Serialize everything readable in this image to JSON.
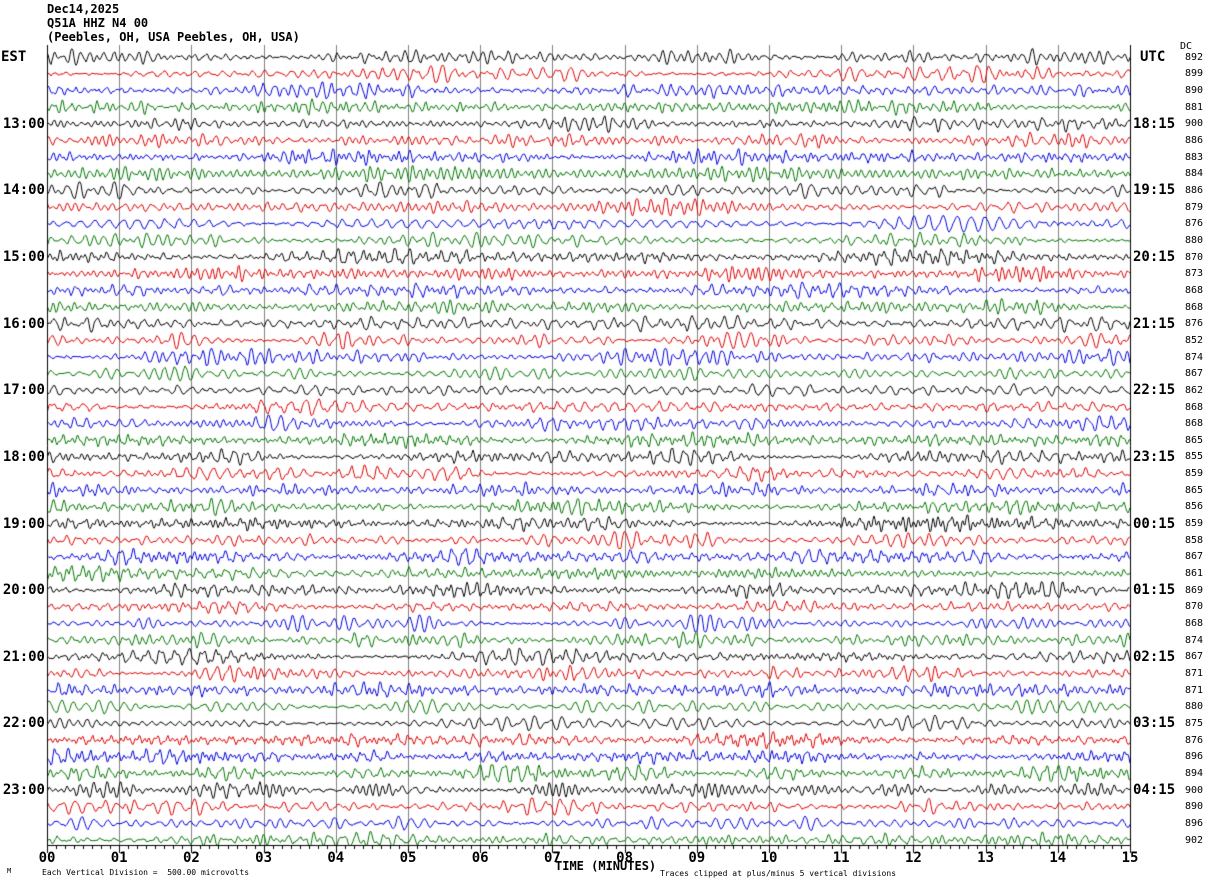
{
  "header": {
    "date_line": "Dec14,2025",
    "station_line": "Q51A HHZ N4 00",
    "location_line": "(Peebles, OH, USA Peebles, OH, USA)"
  },
  "axis_labels": {
    "left": "EST",
    "right": "UTC",
    "dc": "DC",
    "x_title": "TIME (MINUTES)"
  },
  "footer": {
    "corner_mark": "M",
    "scale_note": "Each Vertical Division =  500.00 microvolts",
    "clip_note": "Traces clipped at plus/minus 5 vertical divisions"
  },
  "colors": {
    "trace_cycle": [
      "#000000",
      "#dd0000",
      "#0000dd",
      "#007700"
    ],
    "gridline": "#808080",
    "axis": "#000000",
    "background": "#ffffff"
  },
  "chart_data": {
    "type": "line",
    "subtype": "seismogram-helicorder",
    "title": "Q51A HHZ N4 00 (Peebles, OH, USA) Dec14,2025",
    "xlabel": "TIME (MINUTES)",
    "x_axis": {
      "range_minutes": [
        0,
        15
      ],
      "tick_labels": [
        "00",
        "01",
        "02",
        "03",
        "04",
        "05",
        "06",
        "07",
        "08",
        "09",
        "10",
        "11",
        "12",
        "13",
        "14",
        "15"
      ],
      "minor_divisions_per_minute": 8
    },
    "left_axis_timezone": "EST",
    "right_axis_timezone": "UTC",
    "minutes_per_line": 15,
    "trace_color_cycle": [
      "black",
      "red",
      "blue",
      "green"
    ],
    "scale": {
      "vertical_division_microvolts": 500.0,
      "clip_divisions": 5
    },
    "waveform_note": "continuous seismic background noise traces; per-sample amplitudes not readable from image",
    "rows": [
      {
        "est": "",
        "utc": "",
        "dc": 892
      },
      {
        "est": "",
        "utc": "",
        "dc": 899
      },
      {
        "est": "",
        "utc": "",
        "dc": 890
      },
      {
        "est": "",
        "utc": "",
        "dc": 881
      },
      {
        "est": "13:00",
        "utc": "18:15",
        "dc": 900
      },
      {
        "est": "",
        "utc": "",
        "dc": 886
      },
      {
        "est": "",
        "utc": "",
        "dc": 883
      },
      {
        "est": "",
        "utc": "",
        "dc": 884
      },
      {
        "est": "14:00",
        "utc": "19:15",
        "dc": 886
      },
      {
        "est": "",
        "utc": "",
        "dc": 879
      },
      {
        "est": "",
        "utc": "",
        "dc": 876
      },
      {
        "est": "",
        "utc": "",
        "dc": 880
      },
      {
        "est": "15:00",
        "utc": "20:15",
        "dc": 870
      },
      {
        "est": "",
        "utc": "",
        "dc": 873
      },
      {
        "est": "",
        "utc": "",
        "dc": 868
      },
      {
        "est": "",
        "utc": "",
        "dc": 868
      },
      {
        "est": "16:00",
        "utc": "21:15",
        "dc": 876
      },
      {
        "est": "",
        "utc": "",
        "dc": 852
      },
      {
        "est": "",
        "utc": "",
        "dc": 874
      },
      {
        "est": "",
        "utc": "",
        "dc": 867
      },
      {
        "est": "17:00",
        "utc": "22:15",
        "dc": 862
      },
      {
        "est": "",
        "utc": "",
        "dc": 868
      },
      {
        "est": "",
        "utc": "",
        "dc": 868
      },
      {
        "est": "",
        "utc": "",
        "dc": 865
      },
      {
        "est": "18:00",
        "utc": "23:15",
        "dc": 855
      },
      {
        "est": "",
        "utc": "",
        "dc": 859
      },
      {
        "est": "",
        "utc": "",
        "dc": 865
      },
      {
        "est": "",
        "utc": "",
        "dc": 856
      },
      {
        "est": "19:00",
        "utc": "00:15",
        "dc": 859
      },
      {
        "est": "",
        "utc": "",
        "dc": 858
      },
      {
        "est": "",
        "utc": "",
        "dc": 867
      },
      {
        "est": "",
        "utc": "",
        "dc": 861
      },
      {
        "est": "20:00",
        "utc": "01:15",
        "dc": 869
      },
      {
        "est": "",
        "utc": "",
        "dc": 870
      },
      {
        "est": "",
        "utc": "",
        "dc": 868
      },
      {
        "est": "",
        "utc": "",
        "dc": 874
      },
      {
        "est": "21:00",
        "utc": "02:15",
        "dc": 867
      },
      {
        "est": "",
        "utc": "",
        "dc": 871
      },
      {
        "est": "",
        "utc": "",
        "dc": 871
      },
      {
        "est": "",
        "utc": "",
        "dc": 880
      },
      {
        "est": "22:00",
        "utc": "03:15",
        "dc": 875
      },
      {
        "est": "",
        "utc": "",
        "dc": 876
      },
      {
        "est": "",
        "utc": "",
        "dc": 896
      },
      {
        "est": "",
        "utc": "",
        "dc": 894
      },
      {
        "est": "23:00",
        "utc": "04:15",
        "dc": 900
      },
      {
        "est": "",
        "utc": "",
        "dc": 890
      },
      {
        "est": "",
        "utc": "",
        "dc": 896
      },
      {
        "est": "",
        "utc": "",
        "dc": 902
      }
    ]
  }
}
